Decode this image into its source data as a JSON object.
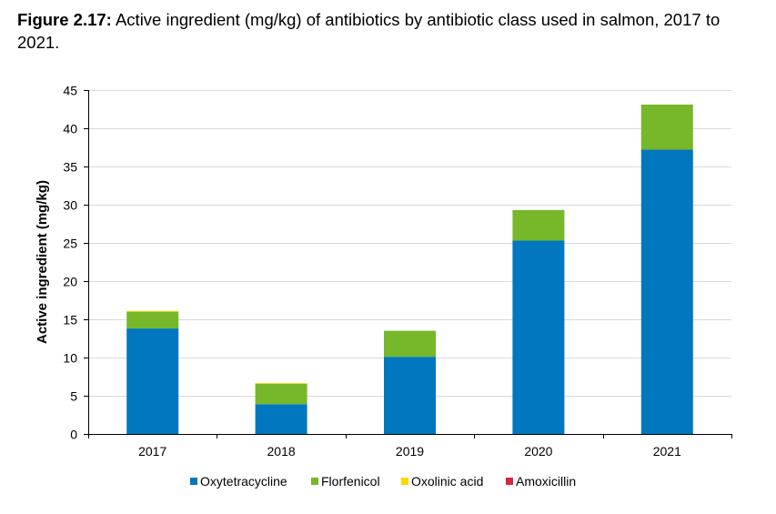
{
  "title": {
    "prefix": "Figure 2.17:",
    "text": " Active ingredient (mg/kg) of antibiotics by antibiotic class used in salmon, 2017 to 2021."
  },
  "chart_data": {
    "type": "bar",
    "stacked": true,
    "title": "Figure 2.17: Active ingredient (mg/kg) of antibiotics by antibiotic class used in salmon, 2017 to 2021.",
    "xlabel": "",
    "ylabel": "Active ingredient (mg/kg)",
    "ylim": [
      0,
      45
    ],
    "yticks": [
      0,
      5,
      10,
      15,
      20,
      25,
      30,
      35,
      40,
      45
    ],
    "grid": true,
    "legend_position": "bottom",
    "categories": [
      "2017",
      "2018",
      "2019",
      "2020",
      "2021"
    ],
    "series": [
      {
        "name": "Oxytetracycline",
        "color": "#0077be",
        "values": [
          13.8,
          3.9,
          10.1,
          25.3,
          37.2
        ]
      },
      {
        "name": "Florfenicol",
        "color": "#76b82a",
        "values": [
          2.2,
          2.7,
          3.4,
          4.0,
          5.9
        ]
      },
      {
        "name": "Oxolinic acid",
        "color": "#ffd500",
        "values": [
          0.1,
          0.05,
          0.0,
          0.0,
          0.0
        ]
      },
      {
        "name": "Amoxicillin",
        "color": "#d7263d",
        "values": [
          0.0,
          0.0,
          0.0,
          0.0,
          0.0
        ]
      }
    ]
  }
}
